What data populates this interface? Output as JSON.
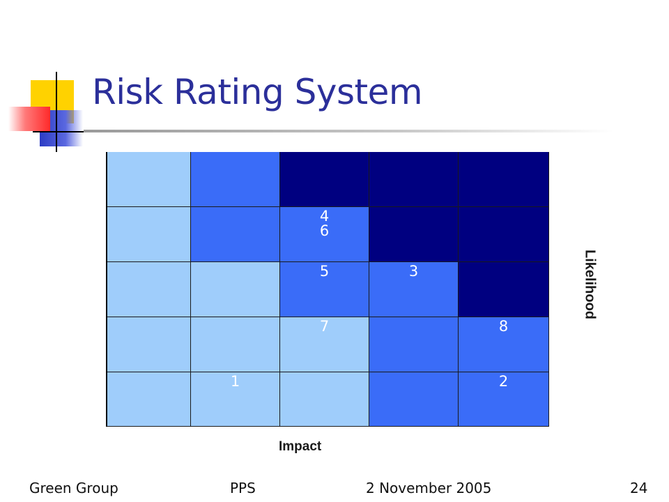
{
  "slide": {
    "title": "Risk Rating System",
    "footer_group": "Green Group",
    "footer_subject": "PPS",
    "footer_date": "2 November 2005",
    "footer_page": "24"
  },
  "matrix": {
    "x_label": "Impact",
    "y_label": "Likelihood",
    "colors": {
      "low": "#9fcdfb",
      "medium": "#3a6cf8",
      "high": "#000080"
    },
    "rows": [
      {
        "levels": [
          "low",
          "medium",
          "high",
          "high",
          "high"
        ],
        "labels": [
          "",
          "",
          "",
          "",
          ""
        ]
      },
      {
        "levels": [
          "low",
          "medium",
          "medium",
          "high",
          "high"
        ],
        "labels": [
          "",
          "",
          "4\n6",
          "",
          ""
        ]
      },
      {
        "levels": [
          "low",
          "low",
          "medium",
          "medium",
          "high"
        ],
        "labels": [
          "",
          "",
          "5",
          "3",
          ""
        ]
      },
      {
        "levels": [
          "low",
          "low",
          "low",
          "medium",
          "medium"
        ],
        "labels": [
          "",
          "",
          "7",
          "",
          "8"
        ]
      },
      {
        "levels": [
          "low",
          "low",
          "low",
          "medium",
          "medium"
        ],
        "labels": [
          "",
          "1",
          "",
          "",
          "2"
        ]
      }
    ]
  }
}
